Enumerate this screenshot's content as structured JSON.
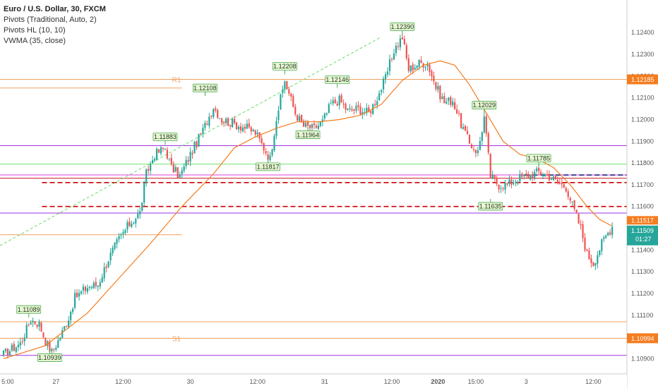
{
  "legend": {
    "title": "Euro / U.S. Dollar, 30, FXCM",
    "studies": [
      "Pivots (Traditional, Auto, 2)",
      "Pivots HL (10, 10)",
      "VWMA (35, close)"
    ]
  },
  "colors": {
    "up": "#26a69a",
    "down": "#ef5350",
    "vwma": "#f57c1f",
    "pivot": "#f0a060",
    "purple": "#a033e0",
    "green": "#70e070",
    "magenta": "#e040e0",
    "red": "#cc0000",
    "crimson": "#c8182f",
    "trendline": "#66dd66",
    "navy": "#1a237e",
    "hl_label_bg": "#e8f5d6",
    "hl_label_border": "#4caf50",
    "price_axis_bg": "#26a69a",
    "orange_tag": "#f57c1f"
  },
  "chart_data": {
    "type": "candlestick",
    "symbol": "Euro / U.S. Dollar",
    "timeframe": "30",
    "source": "FXCM",
    "y_axis": {
      "range": [
        1.1083,
        1.1255
      ],
      "ticks": [
        "1.12400",
        "1.12300",
        "1.12200",
        "1.12100",
        "1.12000",
        "1.11900",
        "1.11800",
        "1.11700",
        "1.11600",
        "1.11500",
        "1.11400",
        "1.11300",
        "1.11200",
        "1.11100",
        "1.11000",
        "1.10900"
      ]
    },
    "x_axis": {
      "bar_count": 296,
      "ticks": [
        {
          "bar": 2,
          "label": "5:00",
          "bold": false
        },
        {
          "bar": 25,
          "label": "27",
          "bold": false
        },
        {
          "bar": 57,
          "label": "12:00",
          "bold": false
        },
        {
          "bar": 89,
          "label": "30",
          "bold": false
        },
        {
          "bar": 121,
          "label": "12:00",
          "bold": false
        },
        {
          "bar": 153,
          "label": "31",
          "bold": false
        },
        {
          "bar": 185,
          "label": "12:00",
          "bold": false
        },
        {
          "bar": 207,
          "label": "2020",
          "bold": true
        },
        {
          "bar": 225,
          "label": "15:00",
          "bold": false
        },
        {
          "bar": 249,
          "label": "3",
          "bold": false
        },
        {
          "bar": 281,
          "label": "12:00",
          "bold": false
        }
      ]
    },
    "price_path": [
      [
        0,
        1.1092
      ],
      [
        8,
        1.1097
      ],
      [
        13,
        1.1108
      ],
      [
        17,
        1.1106
      ],
      [
        20,
        1.1098
      ],
      [
        23,
        1.1093
      ],
      [
        27,
        1.11
      ],
      [
        31,
        1.1109
      ],
      [
        34,
        1.1118
      ],
      [
        40,
        1.1123
      ],
      [
        45,
        1.1124
      ],
      [
        50,
        1.1136
      ],
      [
        55,
        1.1145
      ],
      [
        60,
        1.1152
      ],
      [
        65,
        1.1157
      ],
      [
        68,
        1.1175
      ],
      [
        72,
        1.1184
      ],
      [
        77,
        1.1187
      ],
      [
        80,
        1.1178
      ],
      [
        84,
        1.1174
      ],
      [
        88,
        1.1182
      ],
      [
        95,
        1.1195
      ],
      [
        100,
        1.1206
      ],
      [
        104,
        1.12
      ],
      [
        110,
        1.1198
      ],
      [
        116,
        1.1196
      ],
      [
        120,
        1.1194
      ],
      [
        124,
        1.1187
      ],
      [
        127,
        1.1182
      ],
      [
        130,
        1.1201
      ],
      [
        134,
        1.1218
      ],
      [
        139,
        1.1203
      ],
      [
        143,
        1.1197
      ],
      [
        148,
        1.1196
      ],
      [
        152,
        1.1199
      ],
      [
        156,
        1.1207
      ],
      [
        160,
        1.1209
      ],
      [
        164,
        1.1204
      ],
      [
        169,
        1.1205
      ],
      [
        174,
        1.1203
      ],
      [
        178,
        1.121
      ],
      [
        182,
        1.1219
      ],
      [
        186,
        1.1232
      ],
      [
        190,
        1.1238
      ],
      [
        193,
        1.1223
      ],
      [
        198,
        1.1226
      ],
      [
        202,
        1.1226
      ],
      [
        206,
        1.1215
      ],
      [
        210,
        1.1208
      ],
      [
        214,
        1.1209
      ],
      [
        218,
        1.1198
      ],
      [
        222,
        1.1189
      ],
      [
        226,
        1.1185
      ],
      [
        229,
        1.1201
      ],
      [
        232,
        1.1174
      ],
      [
        236,
        1.117
      ],
      [
        240,
        1.117
      ],
      [
        245,
        1.1173
      ],
      [
        250,
        1.1174
      ],
      [
        255,
        1.1176
      ],
      [
        260,
        1.1174
      ],
      [
        264,
        1.1171
      ],
      [
        268,
        1.1169
      ],
      [
        272,
        1.1158
      ],
      [
        275,
        1.115
      ],
      [
        278,
        1.1138
      ],
      [
        281,
        1.1134
      ],
      [
        285,
        1.1143
      ],
      [
        288,
        1.1148
      ],
      [
        290,
        1.1151
      ]
    ],
    "vwma_path": [
      [
        0,
        1.109
      ],
      [
        20,
        1.1096
      ],
      [
        40,
        1.1111
      ],
      [
        55,
        1.1127
      ],
      [
        70,
        1.1143
      ],
      [
        85,
        1.116
      ],
      [
        100,
        1.1175
      ],
      [
        110,
        1.1187
      ],
      [
        120,
        1.1192
      ],
      [
        130,
        1.1196
      ],
      [
        140,
        1.1199
      ],
      [
        150,
        1.1199
      ],
      [
        160,
        1.12
      ],
      [
        170,
        1.1202
      ],
      [
        180,
        1.1207
      ],
      [
        190,
        1.1218
      ],
      [
        200,
        1.1225
      ],
      [
        208,
        1.1227
      ],
      [
        215,
        1.1225
      ],
      [
        222,
        1.1216
      ],
      [
        230,
        1.1203
      ],
      [
        238,
        1.119
      ],
      [
        246,
        1.1184
      ],
      [
        254,
        1.1182
      ],
      [
        262,
        1.1178
      ],
      [
        270,
        1.117
      ],
      [
        278,
        1.116
      ],
      [
        284,
        1.1154
      ],
      [
        290,
        1.1151
      ]
    ],
    "hlines": [
      {
        "name": "R1",
        "value": 1.12185,
        "color": "pivot",
        "label": "R1",
        "label_side": "left",
        "show_in_axis": true
      },
      {
        "name": "R1-prev",
        "value": 1.12145,
        "color": "pivot",
        "bars": [
          0,
          85
        ]
      },
      {
        "name": "S1",
        "value": 1.10994,
        "color": "pivot",
        "label": "S1",
        "label_side": "left",
        "show_in_axis": true
      },
      {
        "name": "S1-prev",
        "value": 1.1107,
        "color": "pivot"
      },
      {
        "name": "prev-mid",
        "value": 1.1147,
        "color": "pivot",
        "bars": [
          0,
          85
        ]
      },
      {
        "name": "purple-upper",
        "value": 1.1188,
        "color": "purple"
      },
      {
        "name": "purple-middle",
        "value": 1.1157,
        "color": "purple"
      },
      {
        "name": "purple-lower",
        "value": 1.10915,
        "color": "purple"
      },
      {
        "name": "green-level",
        "value": 1.11795,
        "color": "green"
      },
      {
        "name": "magenta-level",
        "value": 1.11745,
        "color": "magenta"
      },
      {
        "name": "crimson-level",
        "value": 1.1173,
        "color": "crimson"
      },
      {
        "name": "red-dash-upper",
        "value": 1.1171,
        "color": "red",
        "dashed": true,
        "bars": [
          20,
          296
        ]
      },
      {
        "name": "red-dash-lower",
        "value": 1.116,
        "color": "red",
        "dashed": true,
        "bars": [
          20,
          296
        ]
      },
      {
        "name": "navy-dash",
        "value": 1.11745,
        "color": "navy",
        "dashed": true,
        "bars": [
          250,
          296
        ]
      }
    ],
    "trendline": {
      "from": [
        0,
        1.1142
      ],
      "to": [
        180,
        1.1238
      ]
    },
    "high_low_labels": [
      {
        "bar": 12,
        "value": 1.11089,
        "label": "1.11089",
        "pos": "above"
      },
      {
        "bar": 22,
        "value": 1.10939,
        "label": "1.10939",
        "pos": "below"
      },
      {
        "bar": 77,
        "value": 1.11883,
        "label": "1.11883",
        "pos": "above"
      },
      {
        "bar": 126,
        "value": 1.11817,
        "label": "1.11817",
        "pos": "below"
      },
      {
        "bar": 96,
        "value": 1.12108,
        "label": "1.12108",
        "pos": "above"
      },
      {
        "bar": 134,
        "value": 1.12208,
        "label": "1.12208",
        "pos": "above"
      },
      {
        "bar": 145,
        "value": 1.11964,
        "label": "1.11964",
        "pos": "below"
      },
      {
        "bar": 159,
        "value": 1.12146,
        "label": "1.12146",
        "pos": "above"
      },
      {
        "bar": 190,
        "value": 1.1239,
        "label": "1.12390",
        "pos": "above"
      },
      {
        "bar": 229,
        "value": 1.12029,
        "label": "1.12029",
        "pos": "above"
      },
      {
        "bar": 232,
        "value": 1.11635,
        "label": "1.11635",
        "pos": "below"
      },
      {
        "bar": 255,
        "value": 1.11785,
        "label": "1.11785",
        "pos": "above"
      }
    ],
    "axis_tags": [
      {
        "value": 1.11517,
        "label": "1.11517",
        "color": "orange_tag"
      },
      {
        "value": 1.11509,
        "label": "1.11509",
        "color": "price_axis_bg",
        "sub": "01:27"
      }
    ]
  }
}
